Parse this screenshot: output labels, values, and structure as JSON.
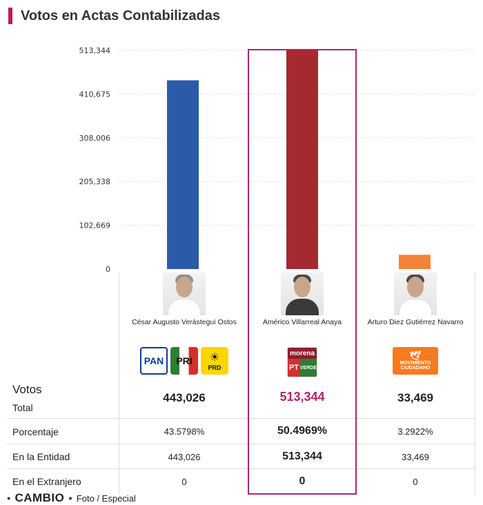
{
  "title": "Votos en Actas Contabilizadas",
  "chart_data": {
    "type": "bar",
    "title": "Votos en Actas Contabilizadas",
    "categories": [
      "César Augusto Verástegui Ostos",
      "Américo Villarreal Anaya",
      "Arturo Diez Gutiérrez Navarro"
    ],
    "values": [
      443026,
      513344,
      33469
    ],
    "colors": [
      "#2a5aa8",
      "#a52a30",
      "#f2823a"
    ],
    "ylim": [
      0,
      513344
    ],
    "yticks": [
      "513,344",
      "410,675",
      "308,006",
      "205,338",
      "102,669",
      "0"
    ],
    "ytick_values": [
      513344,
      410675,
      308006,
      205338,
      102669,
      0
    ],
    "grid": true,
    "highlighted_category": "Américo Villarreal Anaya"
  },
  "candidates": [
    {
      "name": "César Augusto Verástegui Ostos",
      "logos": [
        "PAN",
        "PRI",
        "PRD"
      ]
    },
    {
      "name": "Américo Villarreal Anaya",
      "logos": [
        "morena",
        "PT",
        "VERDE"
      ]
    },
    {
      "name": "Arturo Diez Gutiérrez Navarro",
      "logos": [
        "MOVIMIENTO CIUDADANO"
      ]
    }
  ],
  "logo_text": {
    "pan": "PAN",
    "pri": "PRI",
    "prd": "PRD",
    "morena": "morena",
    "pt": "PT",
    "verde": "VERDE",
    "mc": "MOVIMIENTO CIUDADANO"
  },
  "table": {
    "votos_label": "Votos",
    "total_label": "Total",
    "rows": [
      {
        "label": "Porcentaje",
        "values": [
          "43.5798%",
          "50.4969%",
          "3.2922%"
        ]
      },
      {
        "label": "En la Entidad",
        "values": [
          "443,026",
          "513,344",
          "33,469"
        ]
      },
      {
        "label": "En el Extranjero",
        "values": [
          "0",
          "0",
          "0"
        ]
      }
    ],
    "totals": [
      "443,026",
      "513,344",
      "33,469"
    ],
    "highlight_color": "#b0236d"
  },
  "footer": {
    "brand": "CAMBIO",
    "caption": "Foto / Especial"
  }
}
